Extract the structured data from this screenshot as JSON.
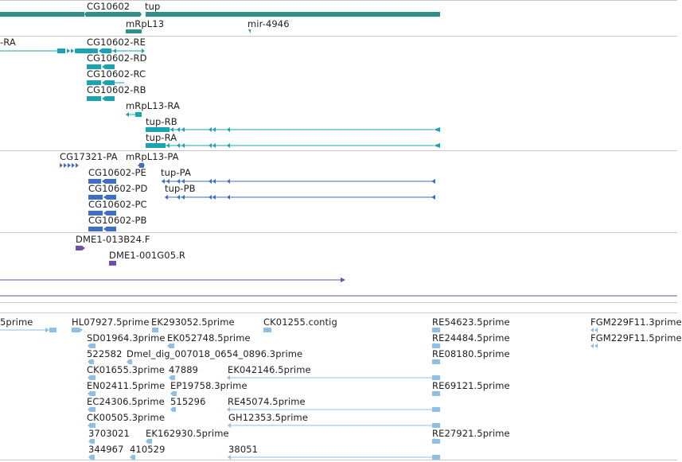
{
  "palette": {
    "gene": "#2f8f8a",
    "transcript": "#1aa3b0",
    "protein": "#3f6ec7",
    "clone": "#6d4fb0",
    "est": "#8fbfe3",
    "separator": "#c8c8c8"
  },
  "labels": {
    "genes": [
      "CG10602",
      "tup",
      "mRpL13",
      "mir-4946"
    ],
    "transcripts": [
      "-RA",
      "CG10602-RE",
      "CG10602-RD",
      "CG10602-RC",
      "CG10602-RB",
      "mRpL13-RA",
      "tup-RB",
      "tup-RA"
    ],
    "proteins": [
      "CG17321-PA",
      "mRpL13-PA",
      "CG10602-PE",
      "tup-PA",
      "CG10602-PD",
      "tup-PB",
      "CG10602-PC",
      "CG10602-PB"
    ],
    "clones": [
      "DME1-013B24.F",
      "DME1-001G05.R"
    ],
    "ests": [
      "5prime",
      "HL07927.5prime",
      "EK293052.5prime",
      "CK01255.contig",
      "RE54623.5prime",
      "FGM229F11.3prime",
      "SD01964.3prime",
      "EK052748.5prime",
      "RE24484.5prime",
      "FGM229F11.5prime",
      "522582",
      "Dmel_dig_007018_0654_0896.3prime",
      "RE08180.5prime",
      "CK01655.3prime",
      "47889",
      "EK042146.5prime",
      "EN02411.5prime",
      "EP19758.3prime",
      "RE69121.5prime",
      "EC24306.5prime",
      "515296",
      "RE45074.5prime",
      "CK00505.3prime",
      "GH12353.5prime",
      "3703021",
      "EK162930.5prime",
      "RE27921.5prime",
      "344967",
      "410529",
      "38051"
    ]
  }
}
